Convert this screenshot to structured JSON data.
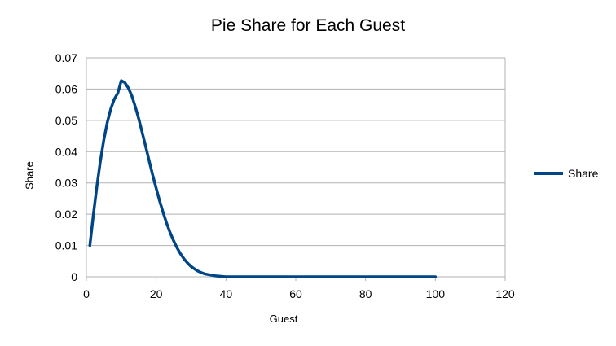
{
  "chart_data": {
    "type": "line",
    "title": "Pie Share for Each Guest",
    "xlabel": "Guest",
    "ylabel": "Share",
    "xlim": [
      0,
      120
    ],
    "ylim": [
      0,
      0.07
    ],
    "x_ticks": [
      0,
      20,
      40,
      60,
      80,
      100,
      120
    ],
    "y_ticks": [
      0,
      0.01,
      0.02,
      0.03,
      0.04,
      0.05,
      0.06,
      0.07
    ],
    "grid": "horizontal",
    "legend_position": "right",
    "series": [
      {
        "name": "Share",
        "color": "#004586",
        "x": [
          1,
          2,
          3,
          4,
          5,
          6,
          7,
          8,
          9,
          10,
          11,
          12,
          13,
          14,
          15,
          16,
          17,
          18,
          19,
          20,
          21,
          22,
          23,
          24,
          25,
          26,
          27,
          28,
          29,
          30,
          31,
          32,
          33,
          34,
          35,
          36,
          37,
          38,
          39,
          40,
          50,
          60,
          70,
          80,
          90,
          100
        ],
        "values": [
          0.01,
          0.0198,
          0.0288,
          0.0369,
          0.0438,
          0.0494,
          0.0537,
          0.0568,
          0.0587,
          0.0627,
          0.0621,
          0.0604,
          0.0579,
          0.0544,
          0.0505,
          0.0461,
          0.0416,
          0.037,
          0.0325,
          0.0283,
          0.0242,
          0.0205,
          0.0171,
          0.0141,
          0.0115,
          0.0092,
          0.0073,
          0.0057,
          0.0044,
          0.0033,
          0.0025,
          0.0018,
          0.0013,
          0.0009,
          0.0007,
          0.0005,
          0.0003,
          0.0002,
          0.0001,
          0.0,
          0.0,
          0.0,
          0.0,
          0.0,
          0.0,
          0.0
        ]
      }
    ]
  }
}
